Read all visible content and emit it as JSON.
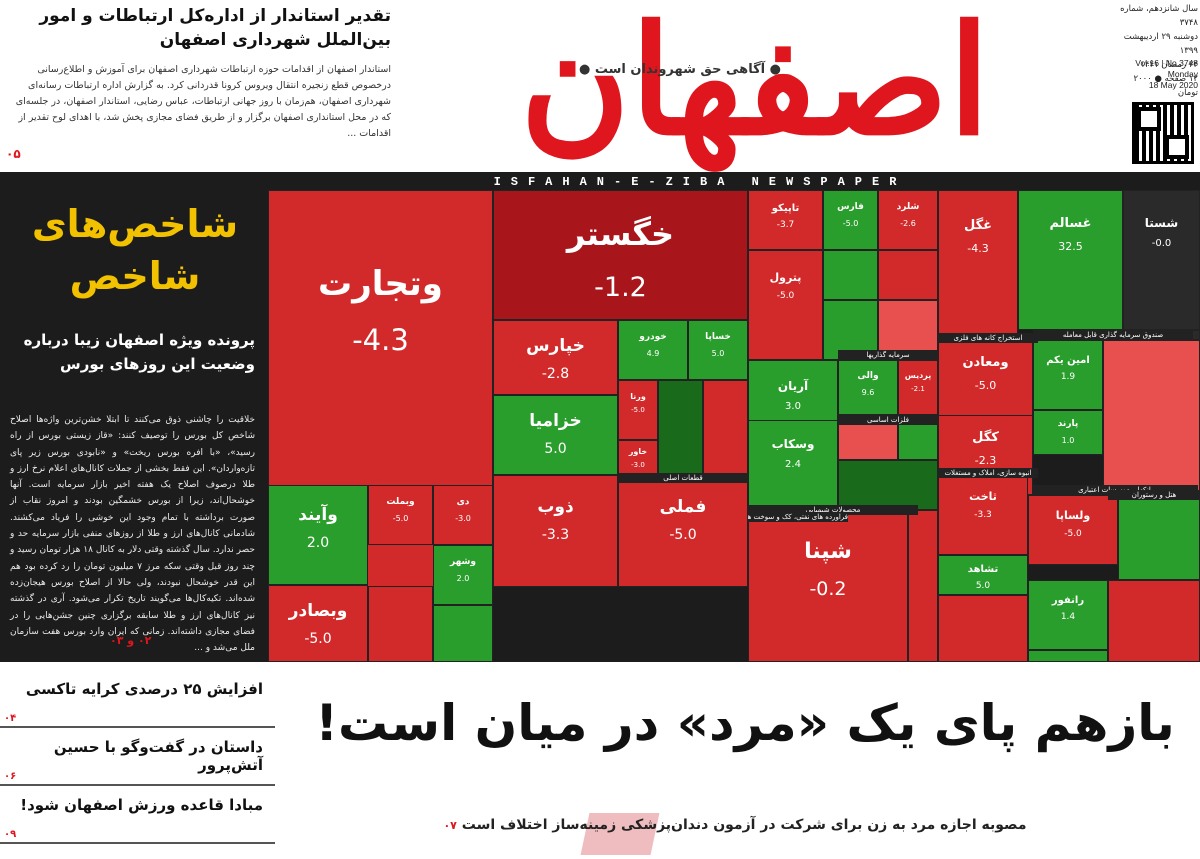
{
  "masthead": {
    "logo": "اصفهان زیبا",
    "tagline": "● آگاهی حق شهروندان است ●",
    "band_label": "ISFAHAN-E-ZIBA  NEWSPAPER",
    "meta_fa": [
      "سال شانزدهم، شماره ۳۷۴۸",
      "دوشنبه ۲۹ اردیبهشت ۱۳۹۹",
      "۲۴ رمضان ۱۴۴۱",
      "۱۲ صفحه  ● ۲۰۰۰ تومان"
    ],
    "meta_en": [
      "Vol.16 | No.3748",
      "Monday",
      "18 May 2020"
    ]
  },
  "top_story": {
    "title": "تقدیر استاندار از اداره‌کل ارتباطات و امور بین‌الملل شهرداری اصفهان",
    "body": "استاندار اصفهان از اقدامات حوزه ارتباطات شهرداری اصفهان برای آموزش و اطلاع‌رسانی درخصوص قطع زنجیره انتقال ویروس کرونا قدردانی کرد. به گزارش اداره ارتباطات رسانه‌ای شهرداری اصفهان، هم‌زمان با روز جهانی ارتباطات، عباس رضایی، استاندار اصفهان، در جلسه‌ای که در محل استانداری اصفهان برگزار و از طریق فضای مجازی پخش شد، با اهدای لوح تقدیر از اقدامات ...",
    "code": "۰۵"
  },
  "feature": {
    "title_line1": "شاخص‌های",
    "title_line2": "شاخص",
    "subtitle": "پرونده ویژه اصفهان زیبا درباره وضعیت این روزهای بورس",
    "body": "خلاقیت را چاشنی ذوق می‌کنند تا ابتلا خشن‌ترین واژه‌ها اصلاح شاخص کل بورس را توصیف کنند: «قاز زیستی بورس از راه رسید»، «با افره بورس ریخت» و «نابودی بورس زیر پای تازه‌واردان». این فقط بخشی از جملات کانال‌های اعلام نرخ ارز و طلا درصوف اصلاح یک هفته اخیر بازار سرمایه است. آنها خوشحال‌اند، زیرا از بورس خشمگین بودند و امروز نقاب از صورت برداشته با تمام وجود این خوشی را فریاد می‌کشند. شادمانی کانال‌های ارز و طلا از روزهای منفی بازار سرمایه حد و حصر ندارد. سال گذشته وقتی دلار به کانال ۱۸ هزار تومان رسید و چند روز قبل وقتی سکه مرز ۷ میلیون تومان را رد کرده بود هم این قدر خوشحال نبودند، ولی حالا از اصلاح بورس هیجان‌زده شده‌اند. تکیه‌کال‌ها می‌گویند تاریخ تکرار می‌شود. آری در گذشته نیز کانال‌های ارز و طلا سابقه برگزاری چنین جشن‌هایی را در فضای مجازی داشته‌اند. زمانی که ایران وارد بورس هفت سازمان ملل می‌شد و ...",
    "code": "۰۲ و ۰۳"
  },
  "treemap": {
    "colors": {
      "red_dark": "#a8151b",
      "red": "#d22a2a",
      "red_light": "#e85050",
      "green": "#2a9e2c",
      "green_dark": "#1a6a1c",
      "dark": "#2a2a2a"
    },
    "tiles": [
      {
        "name": "وتجارت",
        "value": "-4.3"
      },
      {
        "name": "خگستر",
        "value": "-1.2"
      },
      {
        "name": "خپارس",
        "value": "-2.8"
      },
      {
        "name": "خزامیا",
        "value": "5.0"
      },
      {
        "name": "خودرو",
        "value": "4.9"
      },
      {
        "name": "خساپا",
        "value": "5.0"
      },
      {
        "name": "ذوب",
        "value": "-3.3"
      },
      {
        "name": "فملی",
        "value": "-5.0"
      },
      {
        "name": "شپنا",
        "value": "-0.2"
      },
      {
        "name": "وآیند",
        "value": "2.0"
      },
      {
        "name": "وبصادر",
        "value": "-5.0"
      },
      {
        "name": "وبملت",
        "value": "-5.0"
      },
      {
        "name": "دی",
        "value": "-3.0"
      },
      {
        "name": "وشهر",
        "value": "2.0"
      },
      {
        "name": "تاپیکو",
        "value": "-3.7"
      },
      {
        "name": "فارس",
        "value": "-5.0"
      },
      {
        "name": "شلرد",
        "value": "-2.6"
      },
      {
        "name": "پترول",
        "value": "-5.0"
      },
      {
        "name": "آریان",
        "value": "3.0"
      },
      {
        "name": "وسکاب",
        "value": "2.4"
      },
      {
        "name": "والی",
        "value": "9.6"
      },
      {
        "name": "غگل",
        "value": "-4.3"
      },
      {
        "name": "غسالم",
        "value": "32.5"
      },
      {
        "name": "شستا",
        "value": "-0.0"
      },
      {
        "name": "ومعادن",
        "value": "-5.0"
      },
      {
        "name": "کگل",
        "value": "-2.3"
      },
      {
        "name": "امین یکم",
        "value": "1.9"
      },
      {
        "name": "پارند",
        "value": "1.0"
      },
      {
        "name": "ثاخت",
        "value": "-3.3"
      },
      {
        "name": "ولساپا",
        "value": "-5.0"
      },
      {
        "name": "تشاهد",
        "value": "5.0"
      },
      {
        "name": "رانفور",
        "value": "1.4"
      },
      {
        "name": "پردیس",
        "value": "-2.1"
      },
      {
        "name": "ورنا",
        "value": "-5.0"
      },
      {
        "name": "خاور",
        "value": "-3.0"
      }
    ],
    "sectors": [
      "سرمایه گذاریها",
      "قطعات اصلی",
      "محصولات شیمیایی",
      "استخراج کانه های فلزی",
      "صندوق سرمایه گذاری قابل معامله",
      "انبوه سازی، املاک و مستغلات",
      "بانکها و موسسات اعتباری",
      "فراورده های نفتی، کک و سوخت هسته ای",
      "هتل و رستوران",
      "فلزات اساسی"
    ]
  },
  "bottom": {
    "side": [
      {
        "title": "افزایش ۲۵ درصدی کرایه تاکسی",
        "code": "۰۴"
      },
      {
        "title": "داستان در گفت‌وگو با حسین آتش‌پرور",
        "code": "۰۶"
      },
      {
        "title": "مبادا قاعده ورزش اصفهان شود!",
        "code": "۰۹"
      }
    ],
    "headline": "بازهم پای یک «مرد» در میان است!",
    "lede": "مصوبه اجازه مرد به زن برای شرکت در آزمون دندان‌پزشکی زمینه‌ساز اختلاف است",
    "lede_code": "۰۷"
  }
}
